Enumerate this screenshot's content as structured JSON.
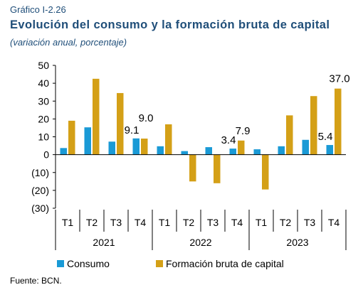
{
  "kicker": "Gráfico I-2.26",
  "title": "Evolución del consumo y la formación bruta de capital",
  "subtitle": "(variación anual, porcentaje)",
  "source": "Fuente: BCN.",
  "colors": {
    "consumo": "#1a9ad6",
    "fbk": "#d4a017"
  },
  "chart_data": {
    "type": "bar",
    "categories": [
      "T1",
      "T2",
      "T3",
      "T4",
      "T1",
      "T2",
      "T3",
      "T4",
      "T1",
      "T2",
      "T3",
      "T4"
    ],
    "groups": [
      "2021",
      "2022",
      "2023"
    ],
    "ylim": [
      -30,
      50
    ],
    "yticks": [
      "50",
      "40",
      "30",
      "20",
      "10",
      "0",
      "(10)",
      "(20)",
      "(30)"
    ],
    "series": [
      {
        "name": "Consumo",
        "values": [
          3.7,
          15.3,
          7.3,
          9.1,
          4.7,
          2.0,
          4.2,
          3.4,
          3.0,
          4.7,
          8.3,
          5.4
        ]
      },
      {
        "name": "Formación bruta de capital",
        "values": [
          19.0,
          42.5,
          34.5,
          9.0,
          17.0,
          -15.0,
          -16.0,
          7.9,
          -19.5,
          22.0,
          32.8,
          37.0
        ]
      }
    ],
    "annotations": [
      {
        "text": "9.1",
        "series": 0,
        "index": 3
      },
      {
        "text": "9.0",
        "series": 1,
        "index": 3
      },
      {
        "text": "3.4",
        "series": 0,
        "index": 7
      },
      {
        "text": "7.9",
        "series": 1,
        "index": 7
      },
      {
        "text": "5.4",
        "series": 0,
        "index": 11
      },
      {
        "text": "37.0",
        "series": 1,
        "index": 11
      }
    ]
  }
}
